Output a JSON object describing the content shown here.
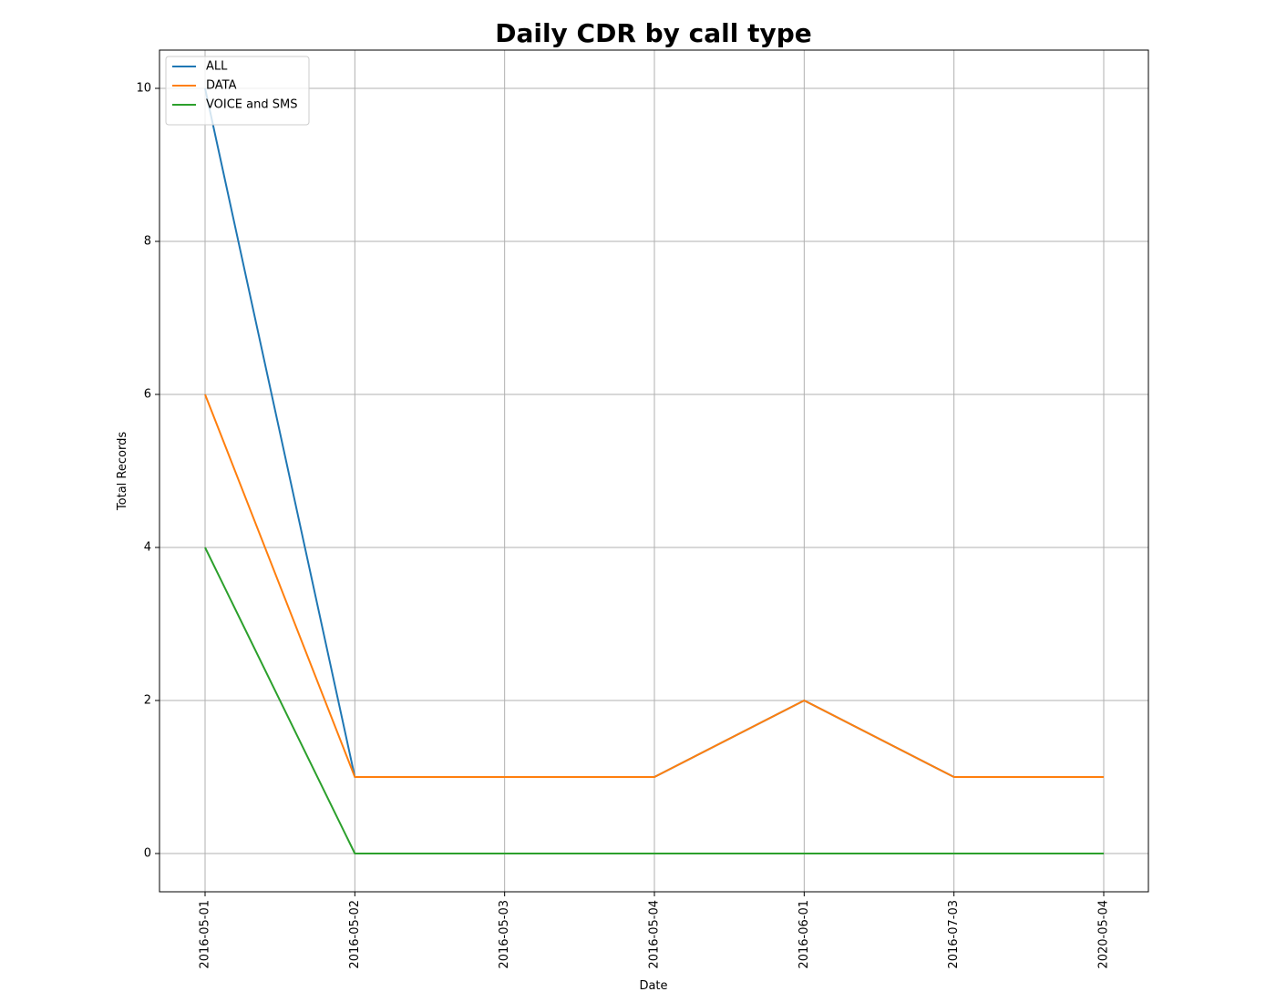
{
  "chart_data": {
    "type": "line",
    "title": "Daily CDR by call type",
    "xlabel": "Date",
    "ylabel": "Total Records",
    "categories": [
      "2016-05-01",
      "2016-05-02",
      "2016-05-03",
      "2016-05-04",
      "2016-06-01",
      "2016-07-03",
      "2020-05-04"
    ],
    "series": [
      {
        "name": "ALL",
        "color": "#1f77b4",
        "values": [
          10,
          1,
          1,
          1,
          2,
          1,
          1
        ]
      },
      {
        "name": "DATA",
        "color": "#ff7f0e",
        "values": [
          6,
          1,
          1,
          1,
          2,
          1,
          1
        ]
      },
      {
        "name": "VOICE and SMS",
        "color": "#2ca02c",
        "values": [
          4,
          0,
          0,
          0,
          0,
          0,
          0
        ]
      }
    ],
    "yticks": [
      0,
      2,
      4,
      6,
      8,
      10
    ],
    "ylim": [
      -0.5,
      10.5
    ],
    "grid": true,
    "legend_position": "top-left",
    "x_tick_rotation": "vertical"
  }
}
